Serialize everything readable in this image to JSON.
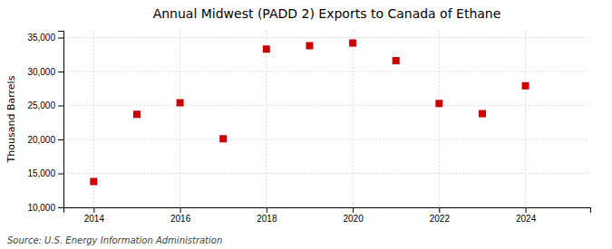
{
  "chart_data": {
    "type": "scatter",
    "title": "Annual Midwest (PADD 2) Exports to Canada of Ethane",
    "ylabel": "Thousand Barrels",
    "annotations": [
      "Source: U.S. Energy Information Administration"
    ],
    "x": [
      2014,
      2015,
      2016,
      2017,
      2018,
      2019,
      2020,
      2021,
      2022,
      2023,
      2024
    ],
    "values": [
      13800,
      23700,
      25400,
      20100,
      33300,
      33800,
      34200,
      31600,
      25300,
      23800,
      27900
    ],
    "color": "#cc0000",
    "marker": "square",
    "xlim": [
      2013.3,
      2025.5
    ],
    "ylim": [
      10000,
      36000
    ],
    "xticks": [
      2014,
      2016,
      2018,
      2020,
      2022,
      2024
    ],
    "yticks": [
      {
        "value": 10000,
        "label": "10,000"
      },
      {
        "value": 15000,
        "label": "15,000"
      },
      {
        "value": 20000,
        "label": "20,000"
      },
      {
        "value": 25000,
        "label": "25,000"
      },
      {
        "value": 30000,
        "label": "30,000"
      },
      {
        "value": 35000,
        "label": "35,000"
      }
    ],
    "grid": true
  }
}
